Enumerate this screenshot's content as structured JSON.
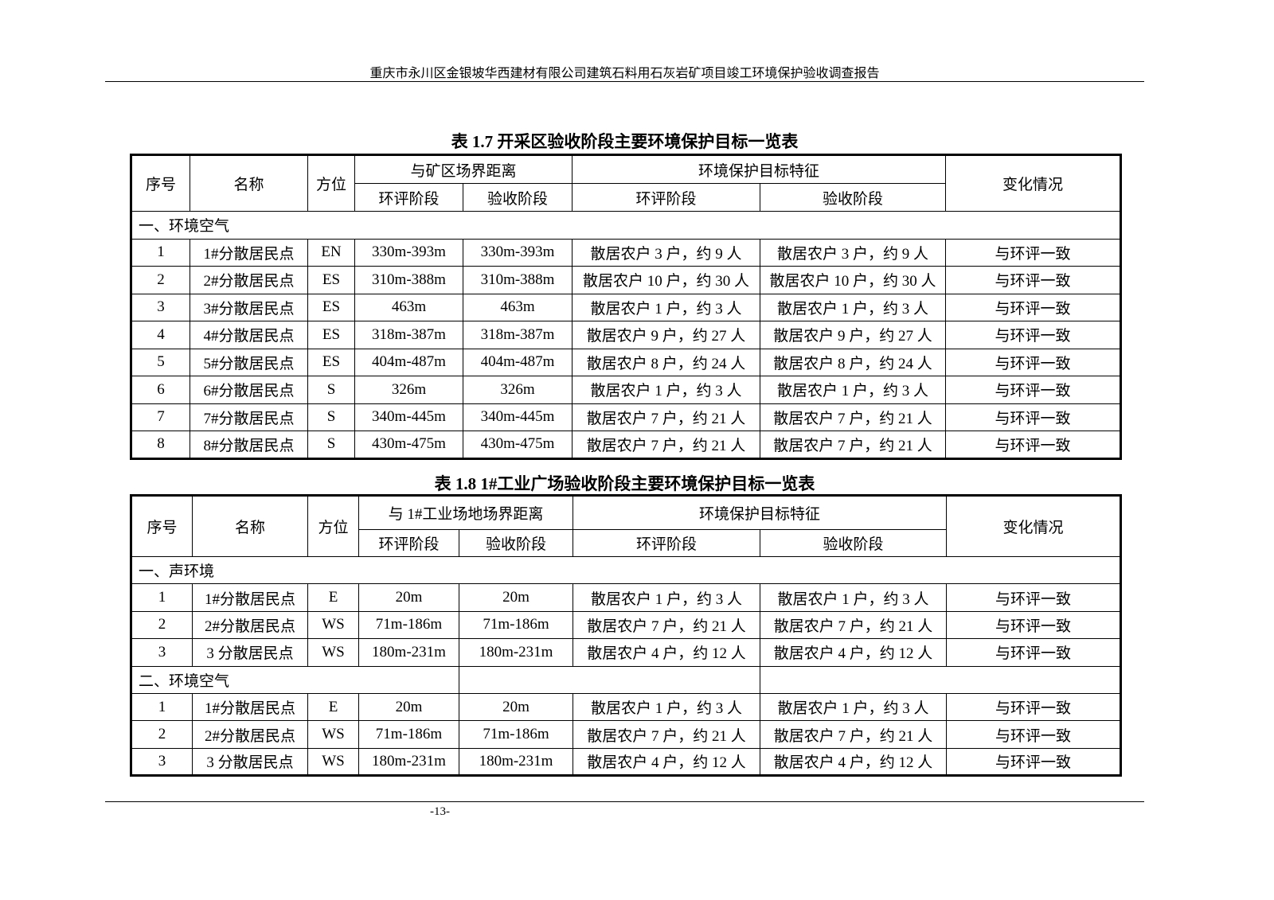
{
  "header": "重庆市永川区金银坡华西建材有限公司建筑石料用石灰岩矿项目竣工环境保护验收调查报告",
  "page_number": "-13-",
  "tables": [
    {
      "caption": "表 1.7  开采区验收阶段主要环境保护目标一览表",
      "head": {
        "seq": "序号",
        "name": "名称",
        "dir": "方位",
        "dist": "与矿区场界距离",
        "feature": "环境保护目标特征",
        "change": "变化情况",
        "eia": "环评阶段",
        "acc": "验收阶段"
      },
      "rows": [
        {
          "section": "一、环境空气"
        },
        {
          "cells": [
            "1",
            "1#分散居民点",
            "EN",
            "330m-393m",
            "330m-393m",
            "散居农户 3 户，约 9 人",
            "散居农户 3 户，约 9 人",
            "与环评一致"
          ]
        },
        {
          "cells": [
            "2",
            "2#分散居民点",
            "ES",
            "310m-388m",
            "310m-388m",
            "散居农户 10 户，约 30 人",
            "散居农户 10 户，约 30 人",
            "与环评一致"
          ]
        },
        {
          "cells": [
            "3",
            "3#分散居民点",
            "ES",
            "463m",
            "463m",
            "散居农户 1 户，约 3 人",
            "散居农户 1 户，约 3 人",
            "与环评一致"
          ]
        },
        {
          "cells": [
            "4",
            "4#分散居民点",
            "ES",
            "318m-387m",
            "318m-387m",
            "散居农户 9 户，约 27 人",
            "散居农户 9 户，约 27 人",
            "与环评一致"
          ]
        },
        {
          "cells": [
            "5",
            "5#分散居民点",
            "ES",
            "404m-487m",
            "404m-487m",
            "散居农户 8 户，约 24 人",
            "散居农户 8 户，约 24 人",
            "与环评一致"
          ]
        },
        {
          "cells": [
            "6",
            "6#分散居民点",
            "S",
            "326m",
            "326m",
            "散居农户 1 户，约 3 人",
            "散居农户 1 户，约 3 人",
            "与环评一致"
          ]
        },
        {
          "cells": [
            "7",
            "7#分散居民点",
            "S",
            "340m-445m",
            "340m-445m",
            "散居农户 7 户，约 21 人",
            "散居农户 7 户，约 21 人",
            "与环评一致"
          ]
        },
        {
          "cells": [
            "8",
            "8#分散居民点",
            "S",
            "430m-475m",
            "430m-475m",
            "散居农户 7 户，约 21 人",
            "散居农户 7 户，约 21 人",
            "与环评一致"
          ]
        }
      ]
    },
    {
      "caption": "表 1.8    1#工业广场验收阶段主要环境保护目标一览表",
      "head": {
        "seq": "序号",
        "name": "名称",
        "dir": "方位",
        "dist": "与 1#工业场地场界距离",
        "feature": "环境保护目标特征",
        "change": "变化情况",
        "eia": "环评阶段",
        "acc": "验收阶段"
      },
      "rows": [
        {
          "section": "一、声环境"
        },
        {
          "cells": [
            "1",
            "1#分散居民点",
            "E",
            "20m",
            "20m",
            "散居农户 1 户，约 3 人",
            "散居农户 1 户，约 3 人",
            "与环评一致"
          ]
        },
        {
          "cells": [
            "2",
            "2#分散居民点",
            "WS",
            "71m-186m",
            "71m-186m",
            "散居农户 7 户，约 21 人",
            "散居农户 7 户，约 21 人",
            "与环评一致"
          ]
        },
        {
          "cells": [
            "3",
            "3 分散居民点",
            "WS",
            "180m-231m",
            "180m-231m",
            "散居农户 4 户，约 12 人",
            "散居农户 4 户，约 12 人",
            "与环评一致"
          ]
        },
        {
          "section": "二、环境空气",
          "split": true
        },
        {
          "cells": [
            "1",
            "1#分散居民点",
            "E",
            "20m",
            "20m",
            "散居农户 1 户，约 3 人",
            "散居农户 1 户，约 3 人",
            "与环评一致"
          ]
        },
        {
          "cells": [
            "2",
            "2#分散居民点",
            "WS",
            "71m-186m",
            "71m-186m",
            "散居农户 7 户，约 21 人",
            "散居农户 7 户，约 21 人",
            "与环评一致"
          ]
        },
        {
          "cells": [
            "3",
            "3 分散居民点",
            "WS",
            "180m-231m",
            "180m-231m",
            "散居农户 4 户，约 12 人",
            "散居农户 4 户，约 12 人",
            "与环评一致"
          ]
        }
      ]
    }
  ]
}
